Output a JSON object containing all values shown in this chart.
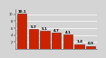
{
  "values": [
    10.1,
    5.7,
    5.1,
    4.7,
    4.1,
    1.4,
    0.9
  ],
  "bar_color": "#CC2200",
  "bar_edge_color": "#7A1400",
  "bar_edge_width": 0.4,
  "label_fontsize": 2.8,
  "label_color": "#000000",
  "ylim": [
    0,
    11.5
  ],
  "tick_fontsize": 2.5,
  "background_color": "#d4d4d4",
  "plot_bg_color": "#d4d4d4",
  "ytick_values": [
    2,
    4,
    6,
    8,
    10
  ],
  "bar_width": 0.82
}
